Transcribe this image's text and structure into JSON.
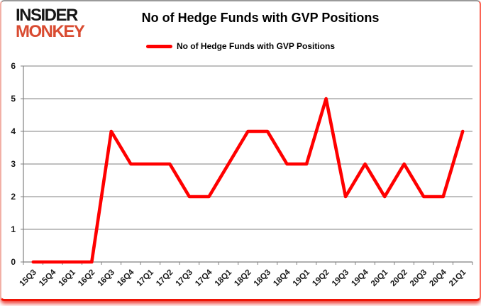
{
  "logo": {
    "line1": "INSIDER",
    "line2": "MONKEY"
  },
  "header": {
    "title": "No of Hedge Funds with GVP Positions"
  },
  "legend": {
    "label": "No of Hedge Funds with GVP Positions"
  },
  "colors": {
    "series": "#ff0000",
    "grid": "#808080",
    "axis_text": "#1a1a1a",
    "logo_black": "#161616",
    "logo_red": "#d94b31",
    "frame_bottom": "#ee1506"
  },
  "chart_data": {
    "type": "line",
    "title": "No of Hedge Funds with GVP Positions",
    "xlabel": "",
    "ylabel": "",
    "ylim": [
      0,
      6
    ],
    "yticks": [
      0,
      1,
      2,
      3,
      4,
      5,
      6
    ],
    "grid": true,
    "legend_position": "top",
    "categories": [
      "15Q3",
      "15Q4",
      "16Q1",
      "16Q2",
      "16Q3",
      "16Q4",
      "17Q1",
      "17Q2",
      "17Q3",
      "17Q4",
      "18Q1",
      "18Q2",
      "18Q3",
      "18Q4",
      "19Q1",
      "19Q2",
      "19Q3",
      "19Q4",
      "20Q1",
      "20Q2",
      "20Q3",
      "20Q4",
      "21Q1"
    ],
    "series": [
      {
        "name": "No of Hedge Funds with GVP Positions",
        "color": "#ff0000",
        "values": [
          0,
          0,
          0,
          0,
          4,
          3,
          3,
          3,
          2,
          2,
          3,
          4,
          4,
          3,
          3,
          5,
          2,
          3,
          2,
          3,
          2,
          2,
          4
        ]
      }
    ]
  }
}
